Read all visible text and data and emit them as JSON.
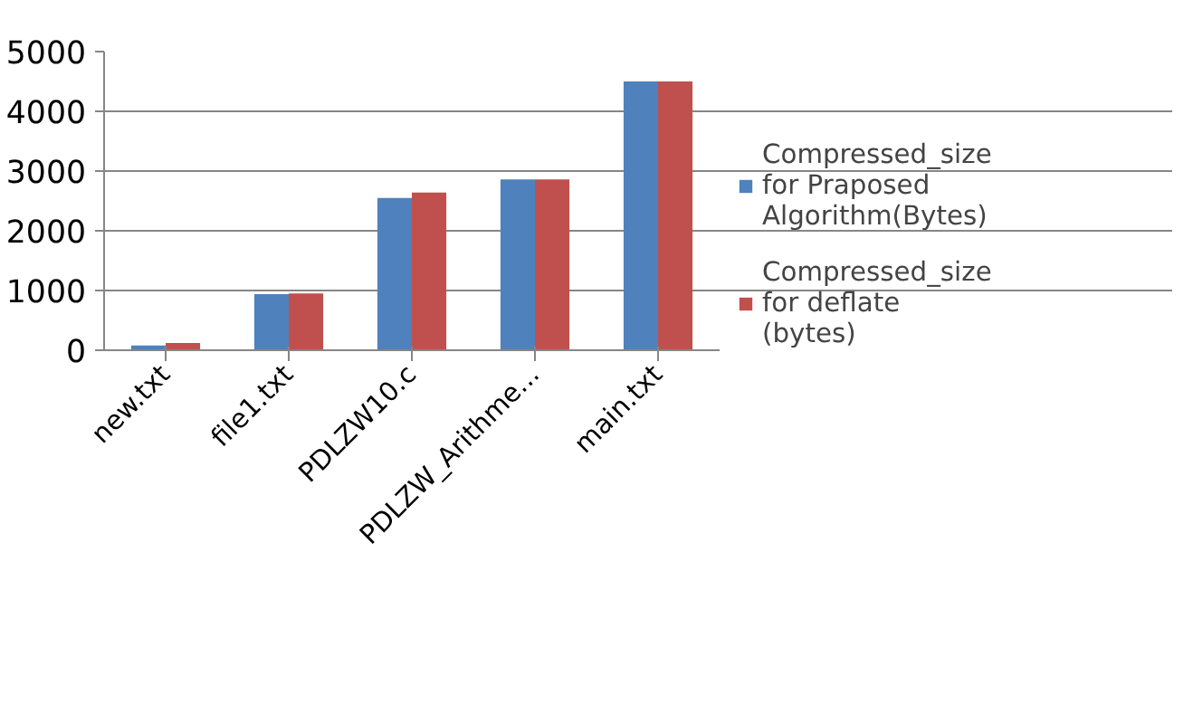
{
  "chart_data": {
    "type": "bar",
    "categories": [
      "new.txt",
      "file1.txt",
      "PDLZW10.c",
      "PDLZW_Arithme...",
      "main.txt"
    ],
    "series": [
      {
        "name": "Compressed_size for Praposed Algorithm(Bytes)",
        "color": "#4f81bd",
        "values": [
          80,
          940,
          2550,
          2860,
          4500
        ]
      },
      {
        "name": "Compressed_size for deflate (bytes)",
        "color": "#c0504d",
        "values": [
          120,
          950,
          2640,
          2860,
          4500
        ]
      }
    ],
    "ylim": [
      0,
      5000
    ],
    "yticks": [
      0,
      1000,
      2000,
      3000,
      4000,
      5000
    ],
    "grid": "y",
    "legend": "right"
  }
}
